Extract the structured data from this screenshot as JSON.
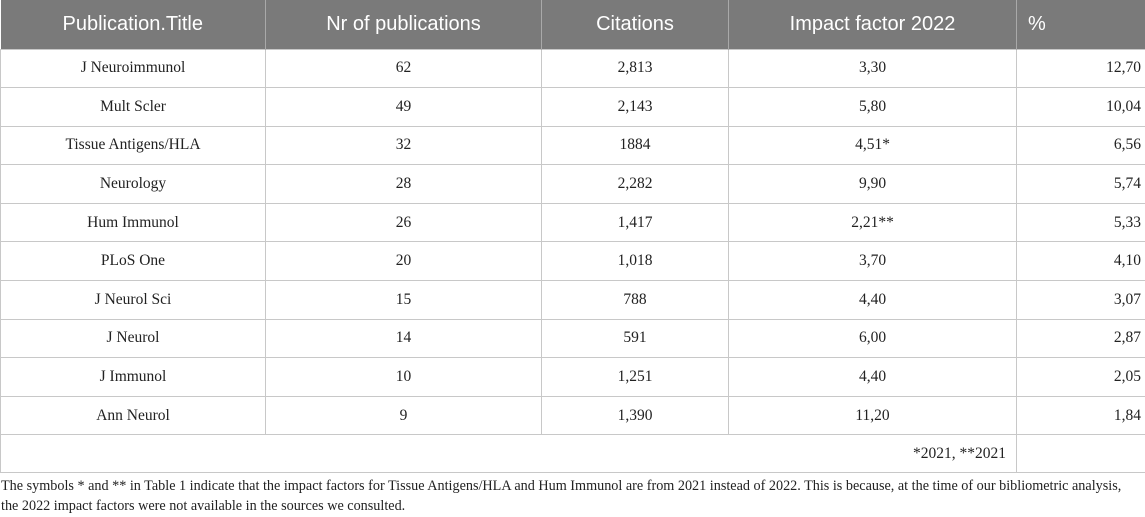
{
  "table": {
    "headers": [
      "Publication.Title",
      "Nr of publications",
      "Citations",
      "Impact factor 2022",
      "%"
    ],
    "rows": [
      {
        "title": "J Neuroimmunol",
        "publications": "62",
        "citations": "2,813",
        "impact": "3,30",
        "percent": "12,70"
      },
      {
        "title": "Mult Scler",
        "publications": "49",
        "citations": "2,143",
        "impact": "5,80",
        "percent": "10,04"
      },
      {
        "title": "Tissue Antigens/HLA",
        "publications": "32",
        "citations": "1884",
        "impact": "4,51*",
        "percent": "6,56"
      },
      {
        "title": "Neurology",
        "publications": "28",
        "citations": "2,282",
        "impact": "9,90",
        "percent": "5,74"
      },
      {
        "title": "Hum Immunol",
        "publications": "26",
        "citations": "1,417",
        "impact": "2,21**",
        "percent": "5,33"
      },
      {
        "title": "PLoS One",
        "publications": "20",
        "citations": "1,018",
        "impact": "3,70",
        "percent": "4,10"
      },
      {
        "title": "J Neurol Sci",
        "publications": "15",
        "citations": "788",
        "impact": "4,40",
        "percent": "3,07"
      },
      {
        "title": "J Neurol",
        "publications": "14",
        "citations": "591",
        "impact": "6,00",
        "percent": "2,87"
      },
      {
        "title": "J Immunol",
        "publications": "10",
        "citations": "1,251",
        "impact": "4,40",
        "percent": "2,05"
      },
      {
        "title": "Ann Neurol",
        "publications": "9",
        "citations": "1,390",
        "impact": "11,20",
        "percent": "1,84"
      }
    ],
    "footnote": "*2021, **2021"
  },
  "caption": "The symbols * and ** in Table 1 indicate that the impact factors for Tissue Antigens/HLA and Hum Immunol are from 2021 instead of 2022. This is because, at the time of our bibliometric analysis, the 2022 impact factors were not available in the sources we consulted.",
  "colors": {
    "header_background": "#7a7a7a",
    "header_text": "#ffffff",
    "border": "#c8c8c8"
  }
}
